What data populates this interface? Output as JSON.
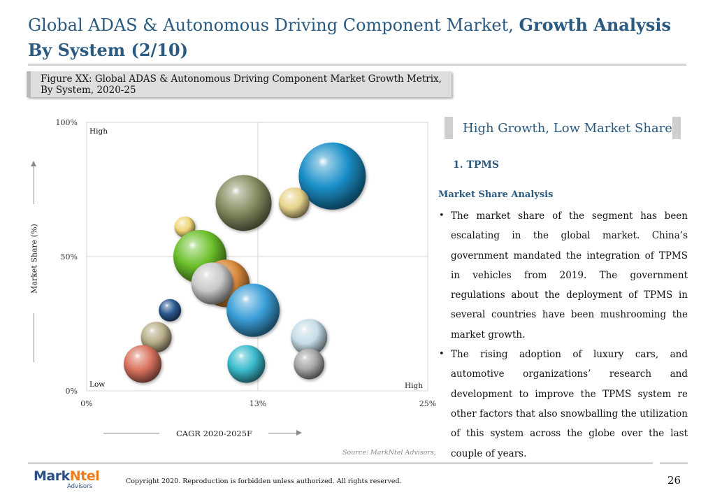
{
  "header": {
    "title_part1": "Global ADAS & Autonomous Driving Component Market, ",
    "title_part2": "Growth Analysis By System (2/10)"
  },
  "figure": {
    "caption": "Figure XX: Global ADAS & Autonomous Driving Component Market Growth Metrix, By System, 2020-25"
  },
  "chart_data": {
    "type": "scatter",
    "variant": "bubble",
    "xlabel": "CAGR 2020-2025F",
    "ylabel": "Market Share (%)",
    "xlim": [
      0,
      25
    ],
    "ylim": [
      0,
      100
    ],
    "x_ticks": [
      "0%",
      "13%",
      "25%"
    ],
    "y_ticks": [
      "0%",
      "50%",
      "100%"
    ],
    "quadrant_labels": {
      "top_left": "High",
      "bottom_left": "Low",
      "bottom_right": "High"
    },
    "grid": "quadrant dividers at 13% and 50%",
    "series": [
      {
        "x": 18,
        "y": 80,
        "r": 48,
        "color": "#1a8fc8"
      },
      {
        "x": 11.5,
        "y": 70,
        "r": 40,
        "color": "#858f62"
      },
      {
        "x": 15.2,
        "y": 70,
        "r": 22,
        "color": "#e8d48e"
      },
      {
        "x": 7.2,
        "y": 61,
        "r": 15,
        "color": "#f1d77a"
      },
      {
        "x": 8.3,
        "y": 50,
        "r": 38,
        "color": "#6bc02b"
      },
      {
        "x": 10.2,
        "y": 40,
        "r": 34,
        "color": "#d98a3c"
      },
      {
        "x": 9.2,
        "y": 40,
        "r": 30,
        "color": "#c9c9c9"
      },
      {
        "x": 12.2,
        "y": 30,
        "r": 38,
        "color": "#3a9ed8"
      },
      {
        "x": 6.1,
        "y": 30,
        "r": 16,
        "color": "#2a5890"
      },
      {
        "x": 5.1,
        "y": 20,
        "r": 22,
        "color": "#b8ae88"
      },
      {
        "x": 16.3,
        "y": 20,
        "r": 26,
        "color": "#c6dde8"
      },
      {
        "x": 4.1,
        "y": 10,
        "r": 27,
        "color": "#d9735e"
      },
      {
        "x": 11.7,
        "y": 10,
        "r": 27,
        "color": "#3abacc"
      },
      {
        "x": 16.3,
        "y": 10,
        "r": 22,
        "color": "#a7a7a7"
      }
    ]
  },
  "quadrant": {
    "title": "High Growth, Low Market Share",
    "item": "1. TPMS",
    "subheading": "Market Share Analysis",
    "bullets": [
      "The market share of the segment has been escalating in the global market. China’s government mandated the integration of TPMS in vehicles from 2019. The government regulations about the deployment of TPMS in several countries have been mushrooming the market growth.",
      "The rising adoption of luxury cars, and automotive organizations’ research and development to improve the TPMS system re other factors that also snowballing the utilization of this system across the globe over the last couple of years."
    ],
    "bullet_glyph": "•"
  },
  "source": "Source: MarkNtel Advisors,",
  "footer": {
    "logo_main": "Mark",
    "logo_accent": "Ntel",
    "logo_sub": "Advisors",
    "copyright": "Copyright 2020. Reproduction is forbidden unless authorized. All rights reserved.",
    "page_number": "26"
  }
}
